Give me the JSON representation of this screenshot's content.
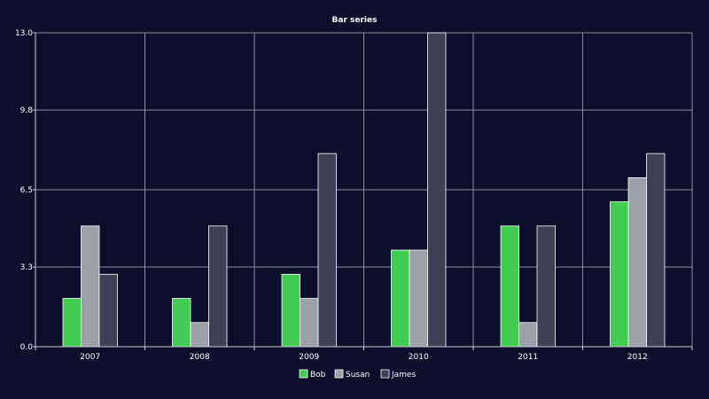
{
  "chart_data": {
    "type": "bar",
    "title": "Bar series",
    "categories": [
      "2007",
      "2008",
      "2009",
      "2010",
      "2011",
      "2012"
    ],
    "series": [
      {
        "name": "Bob",
        "color": "#41cd52",
        "values": [
          2,
          2,
          3,
          4,
          5,
          6
        ]
      },
      {
        "name": "Susan",
        "color": "#9d9fa9",
        "values": [
          5,
          1,
          2,
          4,
          1,
          7
        ]
      },
      {
        "name": "James",
        "color": "#3c4055",
        "values": [
          3,
          5,
          8,
          13,
          5,
          8
        ]
      }
    ],
    "y_ticks": [
      "0.0",
      "3.3",
      "6.5",
      "9.8",
      "13.0"
    ],
    "ylim": [
      0,
      13
    ],
    "grid": true,
    "legend_position": "bottom-center"
  }
}
